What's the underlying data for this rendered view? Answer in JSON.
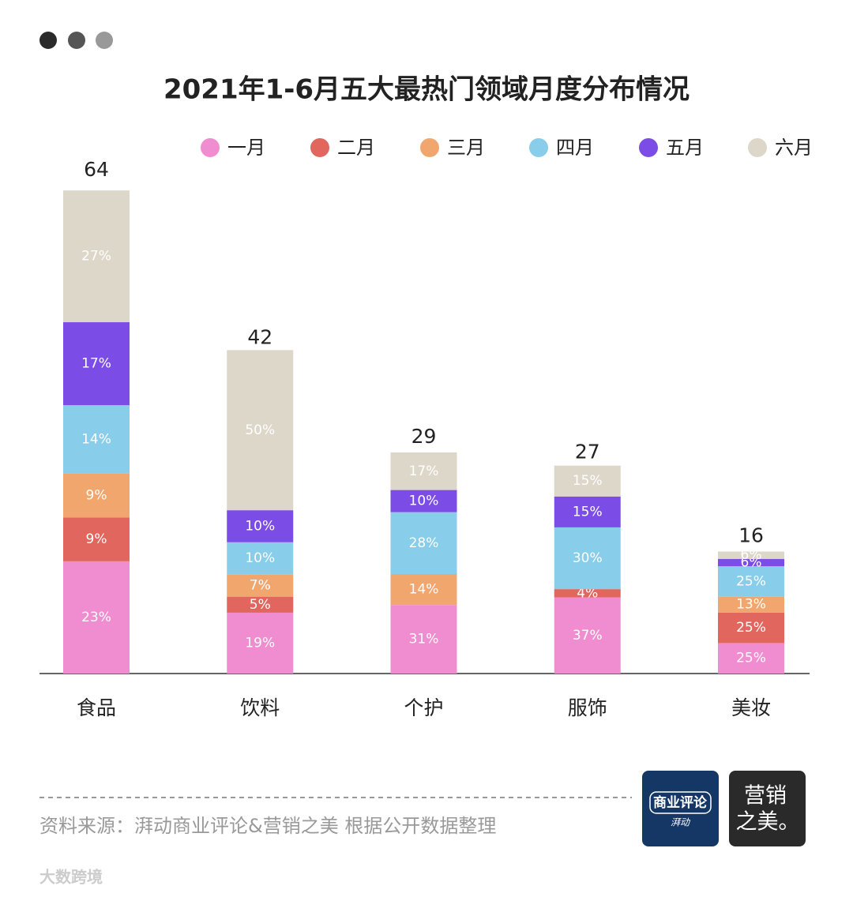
{
  "chart_data": {
    "type": "bar",
    "title": "2021年1-6月五大最热门领域月度分布情况",
    "categories": [
      "食品",
      "饮料",
      "个护",
      "服饰",
      "美妆"
    ],
    "totals": [
      64,
      42,
      29,
      27,
      16
    ],
    "series": [
      {
        "name": "一月",
        "color": "#ef8dd0",
        "values": [
          23,
          19,
          31,
          37,
          25
        ],
        "value_labels": [
          "23%",
          "19%",
          "31%",
          "37%",
          "25%"
        ]
      },
      {
        "name": "二月",
        "color": "#e0665e",
        "values": [
          9,
          5,
          null,
          4,
          25
        ],
        "value_labels": [
          "9%",
          "5%",
          null,
          "4%",
          "25%"
        ]
      },
      {
        "name": "三月",
        "color": "#f1a66e",
        "values": [
          9,
          7,
          14,
          null,
          13
        ],
        "value_labels": [
          "9%",
          "7%",
          "14%",
          null,
          "13%"
        ]
      },
      {
        "name": "四月",
        "color": "#88cdea",
        "values": [
          14,
          10,
          28,
          30,
          25
        ],
        "value_labels": [
          "14%",
          "10%",
          "28%",
          "30%",
          "25%"
        ]
      },
      {
        "name": "五月",
        "color": "#7c4ce6",
        "values": [
          17,
          10,
          10,
          15,
          6
        ],
        "value_labels": [
          "17%",
          "10%",
          "10%",
          "15%",
          "6%"
        ]
      },
      {
        "name": "六月",
        "color": "#ddd7c9",
        "values": [
          27,
          50,
          17,
          15,
          6
        ],
        "value_labels": [
          "27%",
          "50%",
          "17%",
          "15%",
          "6%"
        ]
      }
    ]
  },
  "footer": {
    "source": "资料来源：湃动商业评论&营销之美 根据公开数据整理",
    "logo1": "商业评论",
    "logo1_sub": "湃动",
    "logo2_line1": "营销",
    "logo2_line2": "之美。",
    "watermark": "大数跨境"
  }
}
